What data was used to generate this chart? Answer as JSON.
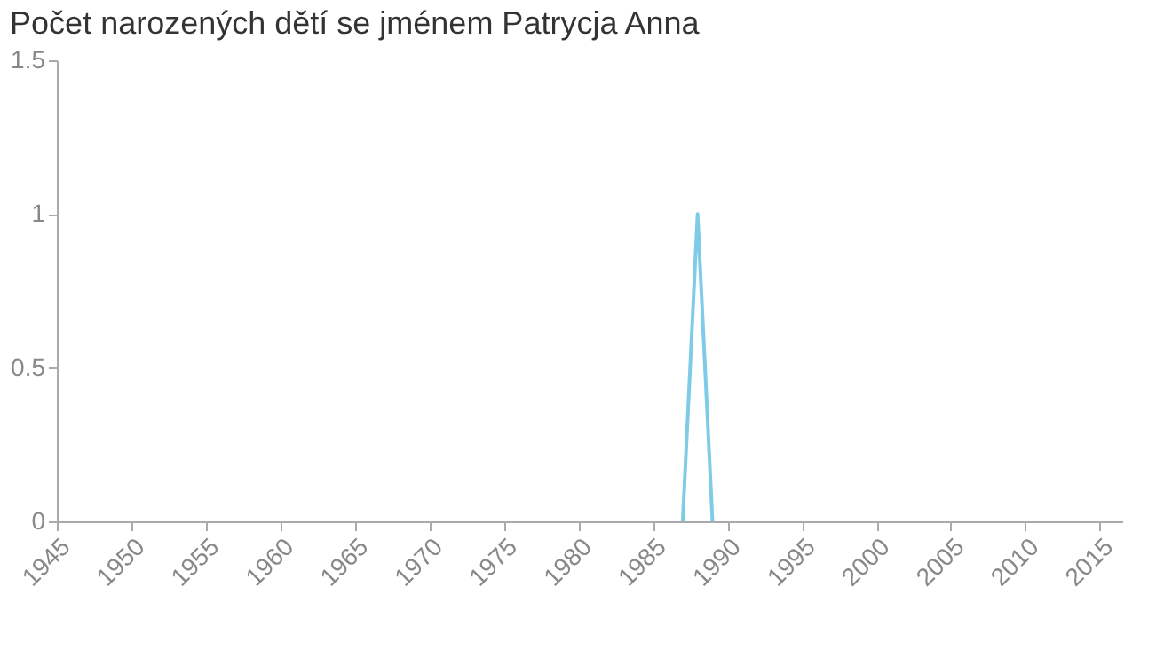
{
  "chart_data": {
    "type": "line",
    "title": "Počet narozených dětí se jménem Patrycja Anna",
    "x": [
      1987,
      1988,
      1989
    ],
    "series": [
      {
        "color": "#7ecbe8",
        "values": [
          0,
          1,
          0
        ]
      }
    ],
    "xlim": [
      1945,
      2016.5
    ],
    "xticks": [
      1945,
      1950,
      1955,
      1960,
      1965,
      1970,
      1975,
      1980,
      1985,
      1990,
      1995,
      2000,
      2005,
      2010,
      2015
    ],
    "ylim": [
      0,
      1.5
    ],
    "yticks": [
      0,
      0.5,
      1,
      1.5
    ],
    "grid": false,
    "marker": "none"
  }
}
